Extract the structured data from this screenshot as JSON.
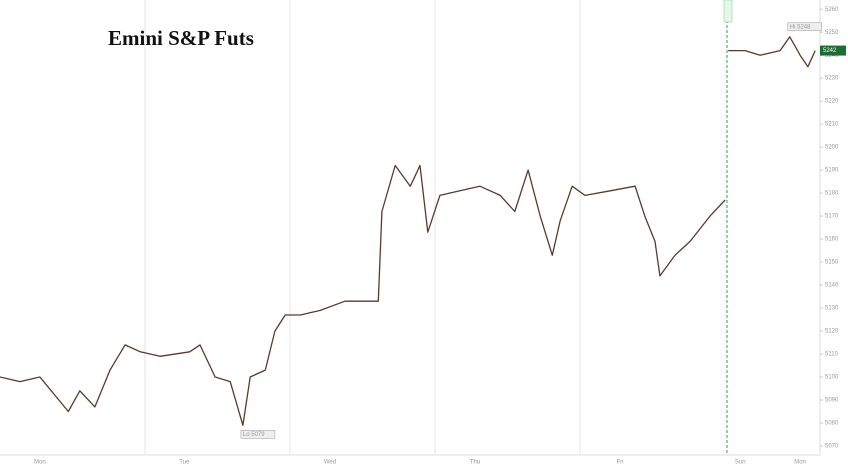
{
  "chart_data": {
    "type": "line",
    "title": "Emini S&P Futs",
    "x": [
      0,
      3.3,
      6.6,
      9.1,
      11.3,
      13.2,
      15.7,
      18.2,
      20.7,
      23.2,
      26.5,
      31.4,
      33.1,
      35.6,
      38.1,
      40.2,
      41.4,
      43.9,
      45.5,
      47.2,
      49.7,
      53,
      57.1,
      62.6,
      63.2,
      65.4,
      67.9,
      69.5,
      70.8,
      72.8,
      76.1,
      79.4,
      82.8,
      85.2,
      87.4,
      89.4,
      91.4,
      92.7,
      94.7,
      96.8,
      101,
      105.1,
      106.7,
      108.4,
      109.2,
      111.7,
      114.2,
      117.5,
      120,
      120.2,
      120.5,
      123.3,
      125.8,
      129.1,
      130.7,
      132.4,
      133.7,
      134.9
    ],
    "series": [
      {
        "name": "Emini S&P Futs",
        "color": "#5a3a2a",
        "values": [
          5100,
          5098,
          5100,
          5092,
          5085,
          5094,
          5087,
          5103,
          5114,
          5111,
          5109,
          5111,
          5114,
          5100,
          5098,
          5079,
          5100,
          5103,
          5120,
          5127,
          5127,
          5129,
          5133,
          5133,
          5172,
          5192,
          5183,
          5192,
          5163,
          5179,
          5181,
          5183,
          5179,
          5172,
          5190,
          5170,
          5153,
          5168,
          5183,
          5179,
          5181,
          5183,
          5170,
          5159,
          5144,
          5153,
          5159,
          5170,
          5177,
          null,
          5242,
          5242,
          5240,
          5242,
          5248,
          5240,
          5235,
          5242
        ]
      }
    ],
    "xlim": [
      0,
      135.7
    ],
    "xticks": [
      {
        "value": 6.6,
        "label": "Mon"
      },
      {
        "value": 30.5,
        "label": "Tue"
      },
      {
        "value": 54.6,
        "label": "Wed"
      },
      {
        "value": 78.6,
        "label": "Thu"
      },
      {
        "value": 102.6,
        "label": "Fri"
      },
      {
        "value": 122.5,
        "label": "Sun"
      },
      {
        "value": 132.4,
        "label": "Mon"
      }
    ],
    "xgrid": [
      24,
      48,
      72,
      96
    ],
    "ylim": [
      5060,
      5264
    ],
    "yticks": [
      5070,
      5080,
      5090,
      5100,
      5110,
      5120,
      5130,
      5140,
      5150,
      5160,
      5170,
      5180,
      5190,
      5200,
      5210,
      5220,
      5230,
      5240,
      5250,
      5260
    ],
    "annotations": [
      {
        "label": "Lo 5079",
        "x": 40.2,
        "y": 5079
      },
      {
        "label": "Hi 5248",
        "x": 130.7,
        "y": 5248
      }
    ],
    "last_price": {
      "label": "5242",
      "y": 5242
    }
  }
}
